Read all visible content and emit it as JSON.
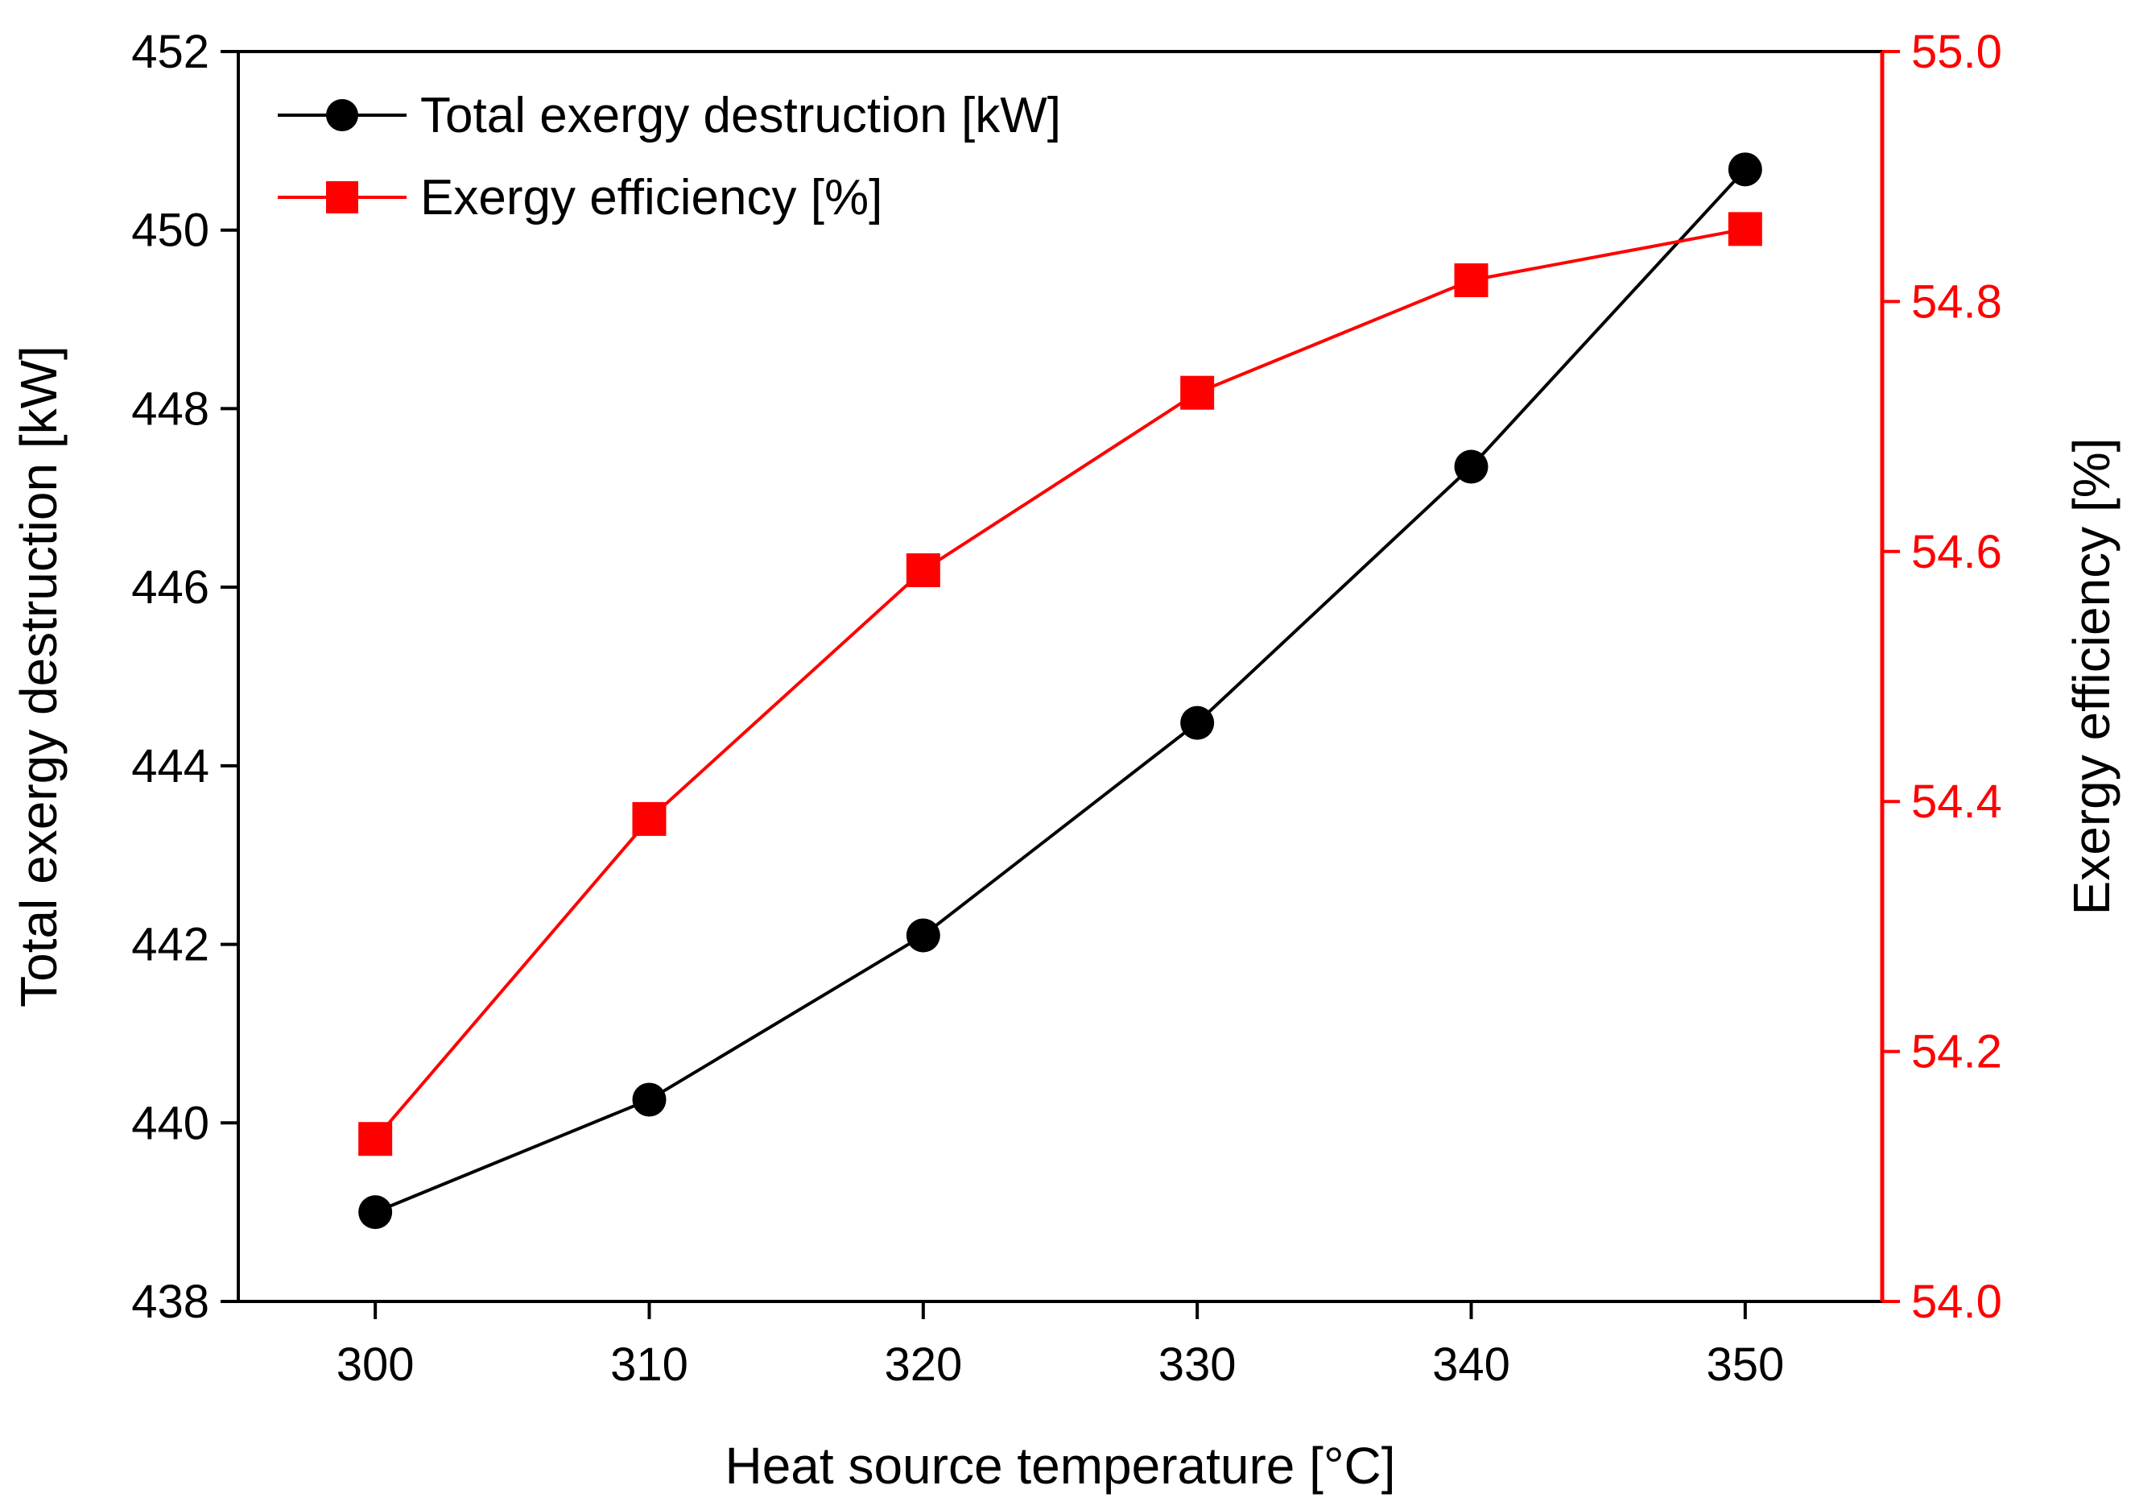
{
  "chart_data": {
    "type": "line",
    "xlabel": "Heat source temperature [°C]",
    "ylabel_left": "Total exergy destruction [kW]",
    "ylabel_right": "Exergy efficiency [%]",
    "x": [
      300,
      310,
      320,
      330,
      340,
      350
    ],
    "x_ticks": [
      "300",
      "310",
      "320",
      "330",
      "340",
      "350"
    ],
    "xlim": [
      295,
      355
    ],
    "y_left_ticks": [
      "438",
      "440",
      "442",
      "444",
      "446",
      "448",
      "450",
      "452"
    ],
    "ylim_left": [
      438,
      452
    ],
    "y_right_ticks": [
      "54.0",
      "54.2",
      "54.4",
      "54.6",
      "54.8",
      "55.0"
    ],
    "ylim_right": [
      54.0,
      55.0
    ],
    "series": [
      {
        "name": "Total exergy destruction [kW]",
        "axis": "left",
        "marker": "circle",
        "color": "#000000",
        "values": [
          439.0,
          440.26,
          442.1,
          444.48,
          447.35,
          450.68
        ]
      },
      {
        "name": "Exergy efficiency [%]",
        "axis": "right",
        "marker": "square",
        "color": "#ff0000",
        "values": [
          54.13,
          54.386,
          54.585,
          54.727,
          54.817,
          54.858
        ]
      }
    ],
    "legend_position": "top-left"
  }
}
